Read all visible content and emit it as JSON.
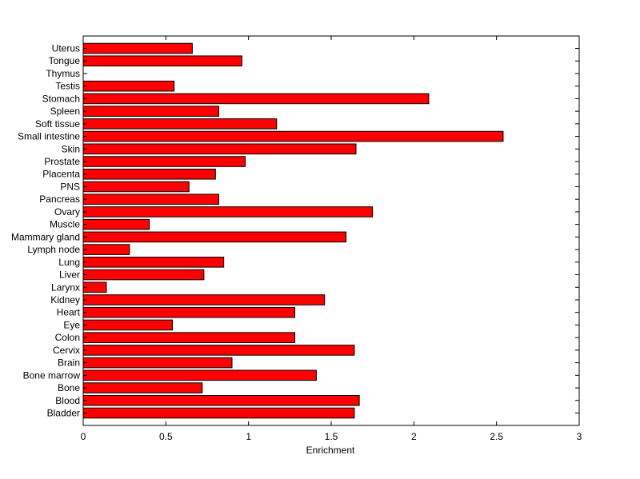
{
  "chart_data": {
    "type": "bar",
    "orientation": "horizontal",
    "categories": [
      "Bladder",
      "Blood",
      "Bone",
      "Bone marrow",
      "Brain",
      "Cervix",
      "Colon",
      "Eye",
      "Heart",
      "Kidney",
      "Larynx",
      "Liver",
      "Lung",
      "Lymph node",
      "Mammary gland",
      "Muscle",
      "Ovary",
      "Pancreas",
      "PNS",
      "Placenta",
      "Prostate",
      "Skin",
      "Small intestine",
      "Soft tissue",
      "Spleen",
      "Stomach",
      "Testis",
      "Thymus",
      "Tongue",
      "Uterus"
    ],
    "values": [
      1.64,
      1.67,
      0.72,
      1.41,
      0.9,
      1.64,
      1.28,
      0.54,
      1.28,
      1.46,
      0.14,
      0.73,
      0.85,
      0.28,
      1.59,
      0.4,
      1.75,
      0.82,
      0.64,
      0.8,
      0.98,
      1.65,
      2.54,
      1.17,
      0.82,
      2.09,
      0.55,
      0.0,
      0.96,
      0.66
    ],
    "xlabel": "Enrichment",
    "ylabel": "",
    "title": "",
    "xlim": [
      0,
      3
    ],
    "xticks": [
      "0",
      "0.5",
      "1",
      "1.5",
      "2",
      "2.5",
      "3"
    ],
    "grid": false,
    "colors": {
      "bar_fill": "#ff0000",
      "bar_stroke": "#000000",
      "axes": "#000000"
    }
  }
}
